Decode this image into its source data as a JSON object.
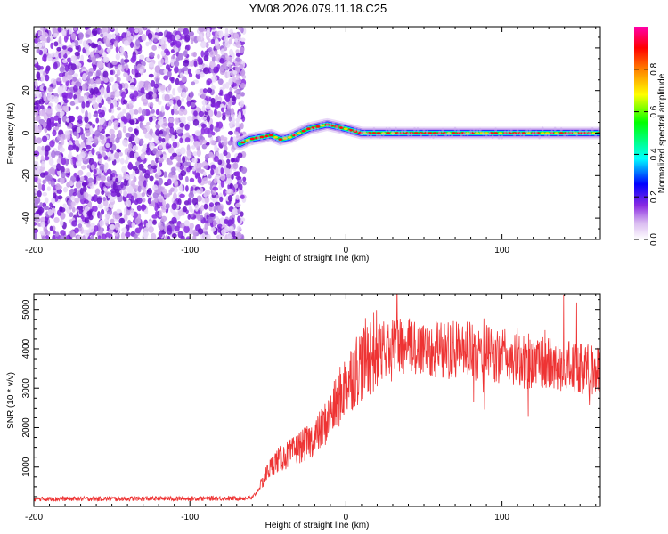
{
  "title": "YM08.2026.079.11.18.C25",
  "chart_data": [
    {
      "type": "heatmap",
      "xlabel": "Height of straight line (km)",
      "ylabel": "Frequency (Hz)",
      "xlim": [
        -200,
        163
      ],
      "ylim": [
        -50,
        50
      ],
      "xticks": [
        -200,
        -100,
        0,
        100
      ],
      "yticks": [
        -40,
        -20,
        0,
        20,
        40
      ],
      "colorbar": {
        "label": "Normalized spectral amplitude",
        "ticks": [
          "0.0",
          "0.2",
          "0.4",
          "0.6",
          "0.8"
        ],
        "range": [
          0,
          1
        ],
        "colors": [
          "#ffffff",
          "#d8b8f0",
          "#8a2be2",
          "#0000ff",
          "#00ffff",
          "#00ff00",
          "#ffff00",
          "#ff8000",
          "#ff0000",
          "#ff00aa"
        ]
      },
      "noise_region_x": [
        -200,
        -65
      ],
      "ridge": {
        "x": [
          -68,
          -62,
          -55,
          -48,
          -42,
          -36,
          -30,
          -24,
          -18,
          -12,
          -6,
          0,
          5,
          10,
          20,
          40,
          60,
          80,
          100,
          120,
          140,
          163
        ],
        "freq": [
          -5,
          -3,
          -2,
          -1,
          -3,
          -2,
          0,
          2,
          3,
          4,
          3,
          2,
          1,
          0,
          0,
          0,
          0,
          0,
          0,
          0,
          0,
          0
        ]
      }
    },
    {
      "type": "line",
      "xlabel": "Height of straight line (km)",
      "ylabel": "SNR (10 * v/v)",
      "xlim": [
        -200,
        163
      ],
      "ylim": [
        0,
        5400
      ],
      "xticks": [
        -200,
        -100,
        0,
        100
      ],
      "yticks": [
        1000,
        2000,
        3000,
        4000,
        5000
      ],
      "color": "#ee3333",
      "series": [
        {
          "name": "SNR",
          "x": [
            -200,
            -150,
            -100,
            -60,
            -55,
            -50,
            -45,
            -40,
            -35,
            -30,
            -25,
            -20,
            -15,
            -10,
            -5,
            0,
            5,
            10,
            15,
            20,
            30,
            40,
            50,
            60,
            70,
            80,
            90,
            100,
            110,
            120,
            130,
            140,
            150,
            163
          ],
          "value": [
            190,
            195,
            200,
            210,
            500,
            900,
            1150,
            1250,
            1350,
            1500,
            1600,
            1750,
            2000,
            2300,
            2700,
            3100,
            3400,
            3650,
            3850,
            3950,
            4000,
            4050,
            4050,
            4000,
            3950,
            3950,
            3900,
            3800,
            3700,
            3650,
            3600,
            3550,
            3500,
            3450
          ]
        }
      ]
    }
  ]
}
